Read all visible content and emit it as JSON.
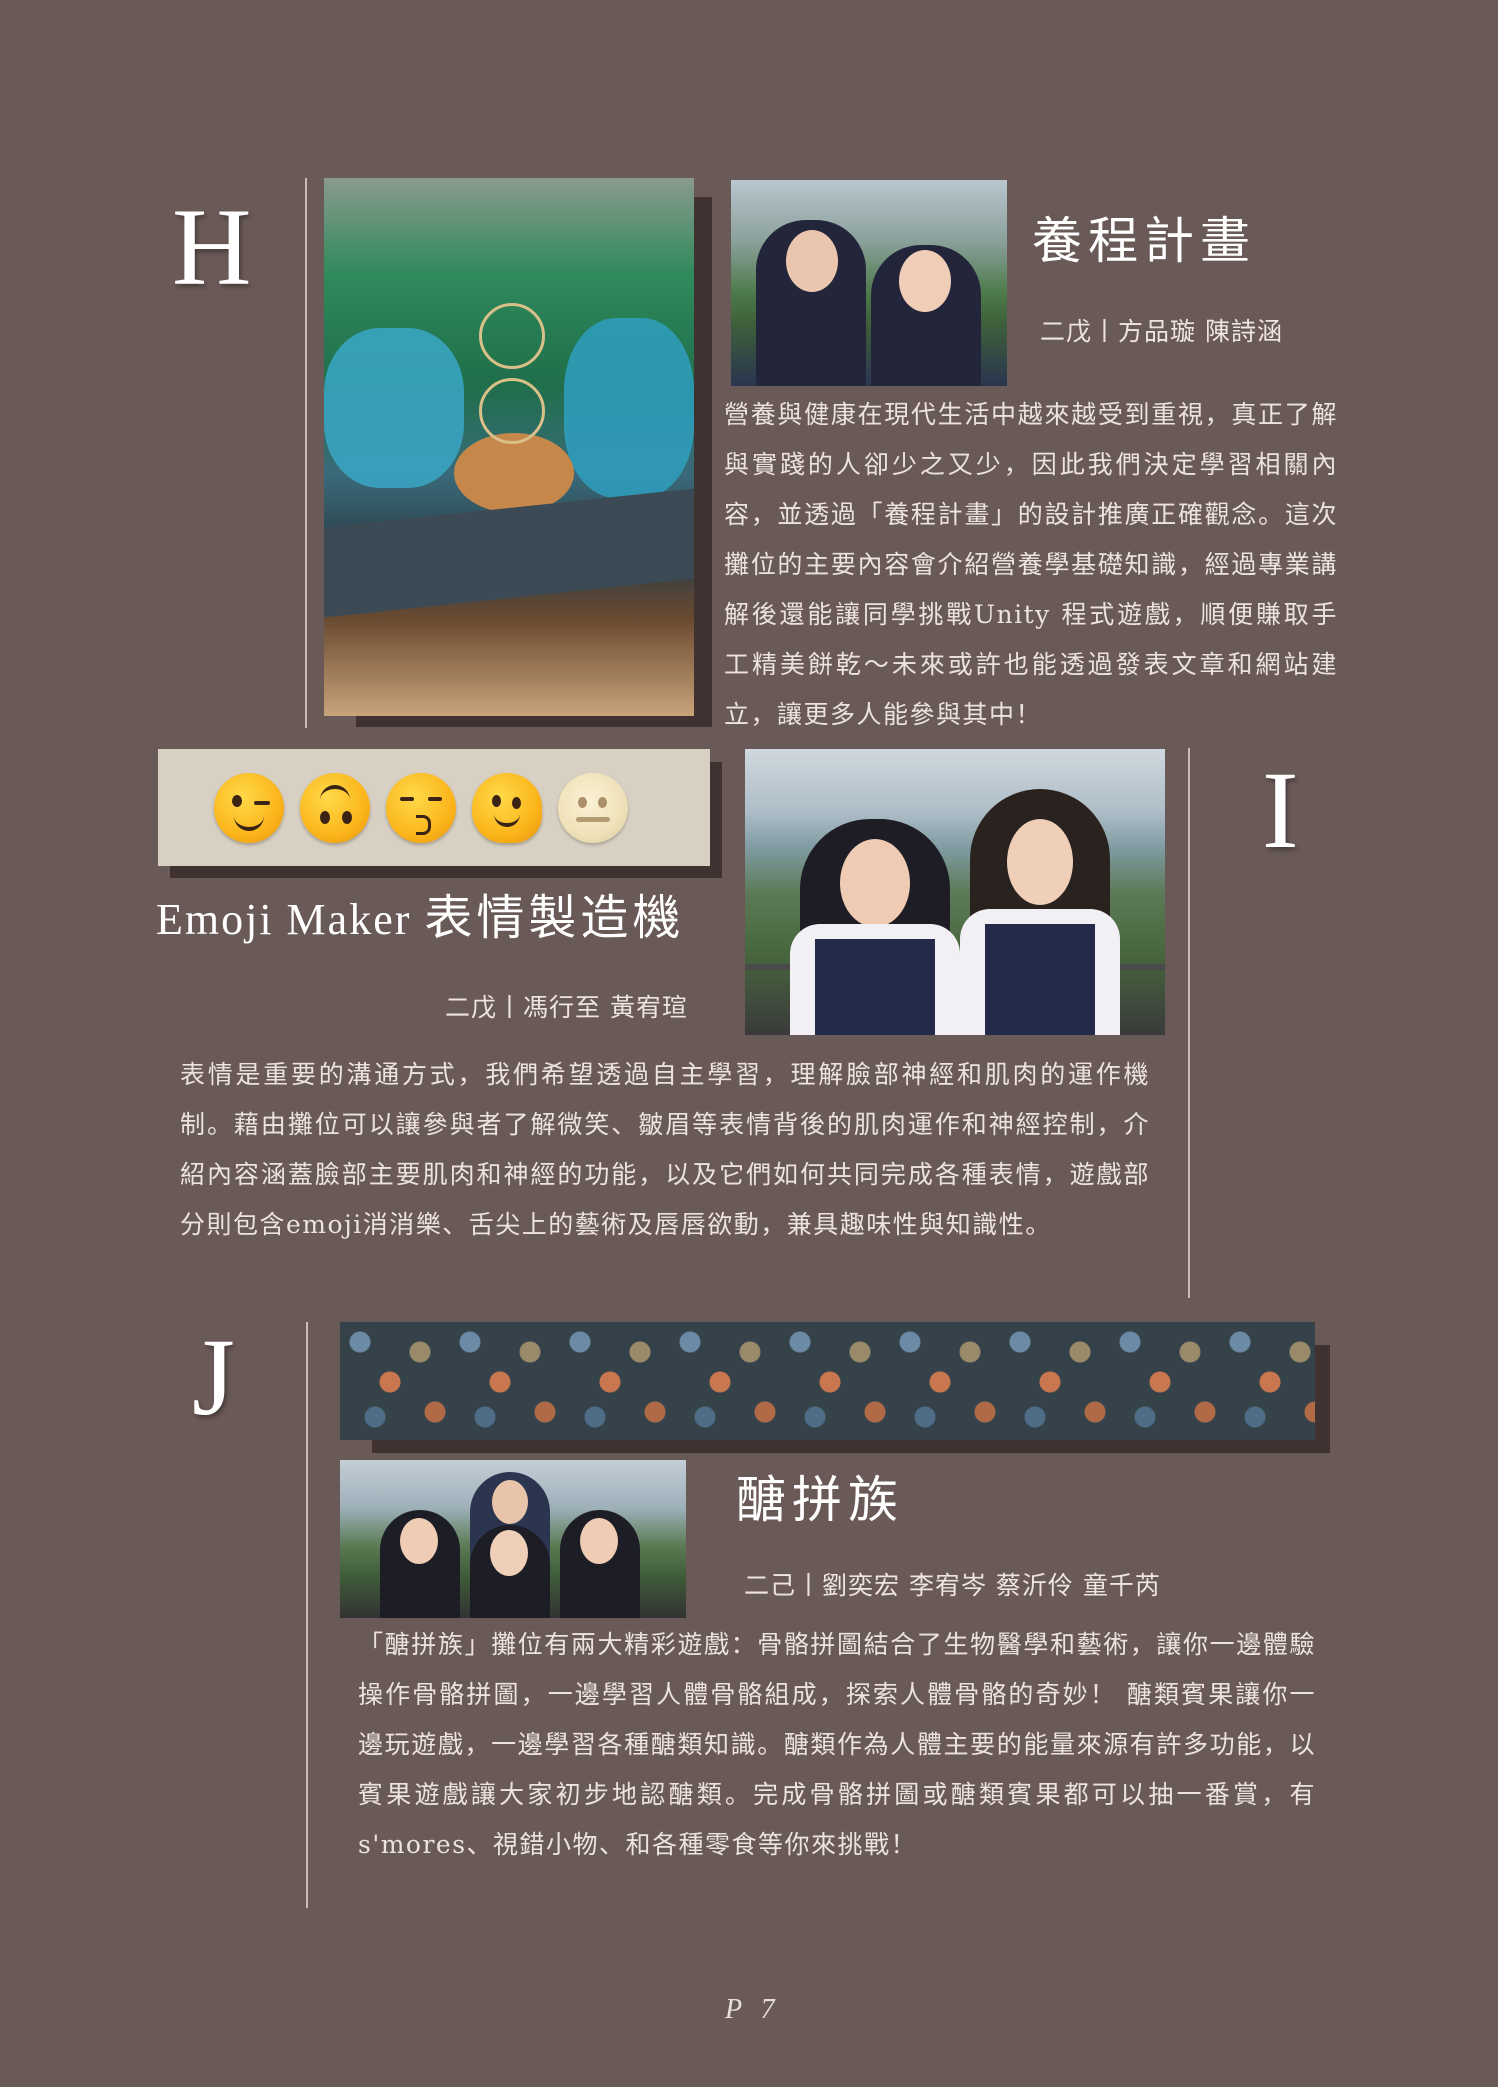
{
  "sections": [
    {
      "letter": "H",
      "title": "養程計畫",
      "names": "二戊丨方品璇  陳詩涵",
      "body": "營養與健康在現代生活中越來越受到重視，真正了解與實踐的人卻少之又少，因此我們決定學習相關內容，並透過「養程計畫」的設計推廣正確觀念。這次攤位的主要內容會介紹營養學基礎知識，經過專業講解後還能讓同學挑戰Unity 程式遊戲，順便賺取手工精美餅乾～未來或許也能透過發表文章和網站建立，讓更多人能參與其中！"
    },
    {
      "letter": "I",
      "title_en": "Emoji Maker ",
      "title": "表情製造機",
      "names": "二戊丨馮行至  黃宥瑄",
      "body": "表情是重要的溝通方式，我們希望透過自主學習，理解臉部神經和肌肉的運作機制。藉由攤位可以讓參與者了解微笑、皺眉等表情背後的肌肉運作和神經控制，介紹內容涵蓋臉部主要肌肉和神經的功能，以及它們如何共同完成各種表情，遊戲部分則包含emoji消消樂、舌尖上的藝術及唇唇欲動，兼具趣味性與知識性。"
    },
    {
      "letter": "J",
      "title": "醣拼族",
      "names": "二己丨劉奕宏  李宥岑  蔡沂伶  童千芮",
      "body": "「醣拼族」攤位有兩大精彩遊戲：骨骼拼圖結合了生物醫學和藝術，讓你一邊體驗操作骨骼拼圖，一邊學習人體骨骼組成，探索人體骨骼的奇妙！ 醣類賓果讓你一邊玩遊戲，一邊學習各種醣類知識。醣類作為人體主要的能量來源有許多功能，以賓果遊戲讓大家初步地認醣類。完成骨骼拼圖或醣類賓果都可以抽一番賞，有s'mores、視錯小物、和各種零食等你來挑戰！"
    }
  ],
  "page_number": "P 7",
  "colors": {
    "background": "#6a5a57",
    "text": "#ece3df",
    "shadow": "#3f3230",
    "emoji_strip": "#d8d0c2"
  },
  "icons": [
    "winking-face-icon",
    "upside-down-face-icon",
    "kissing-face-icon",
    "melting-face-icon",
    "dotted-line-face-icon"
  ]
}
